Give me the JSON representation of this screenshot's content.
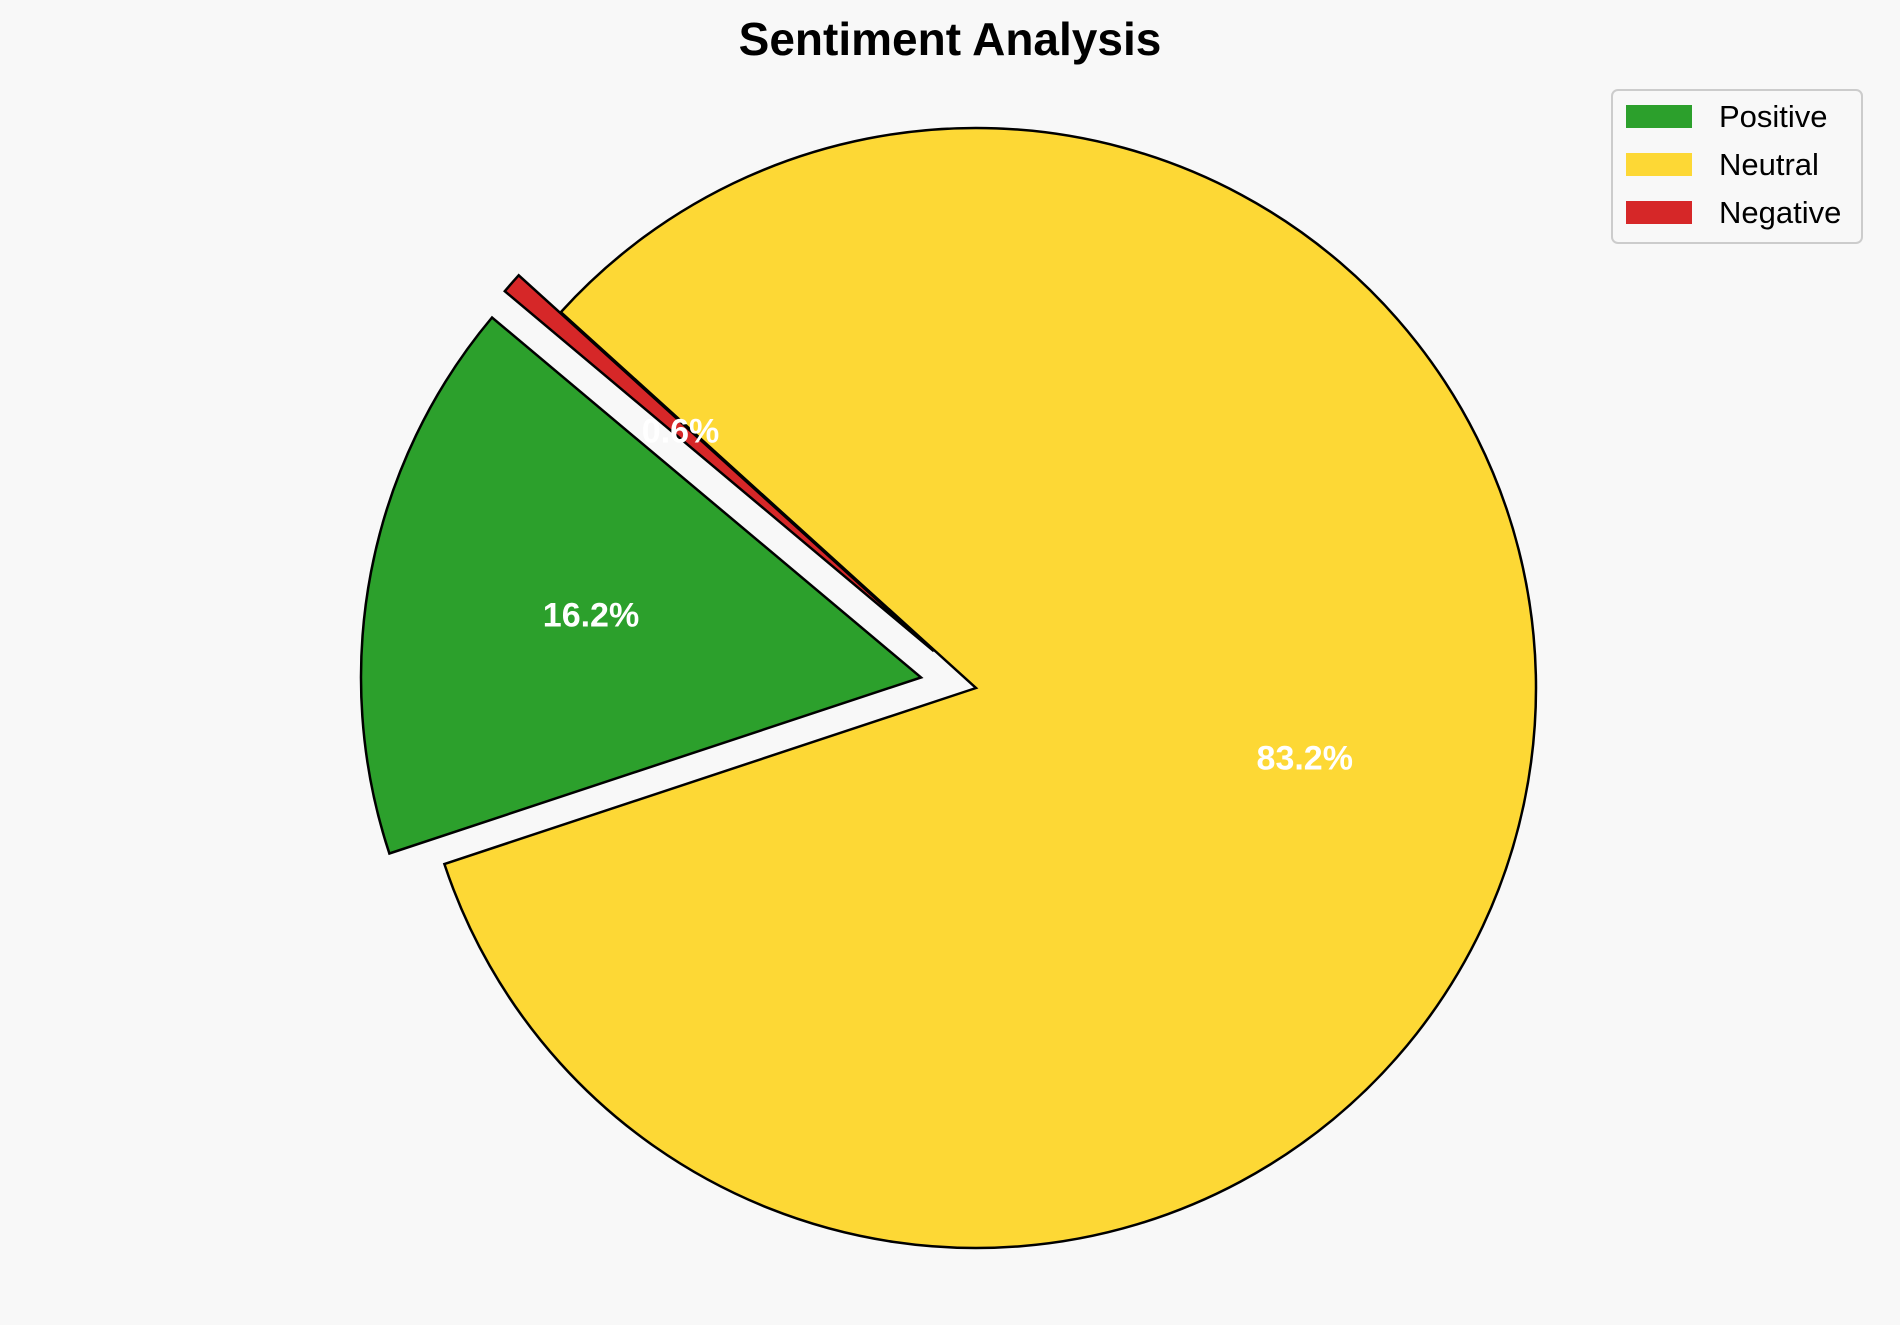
{
  "chart_data": {
    "type": "pie",
    "title": "Sentiment Analysis",
    "slices": [
      {
        "label": "Positive",
        "value": 16.2,
        "pct_label": "16.2%",
        "color": "#2ca02c",
        "exploded": true
      },
      {
        "label": "Neutral",
        "value": 83.2,
        "pct_label": "83.2%",
        "color": "#fdd835",
        "exploded": false
      },
      {
        "label": "Negative",
        "value": 0.6,
        "pct_label": "0.6%",
        "color": "#d62728",
        "exploded": true
      }
    ],
    "start_angle_deg": 140,
    "legend_position": "top-right"
  }
}
